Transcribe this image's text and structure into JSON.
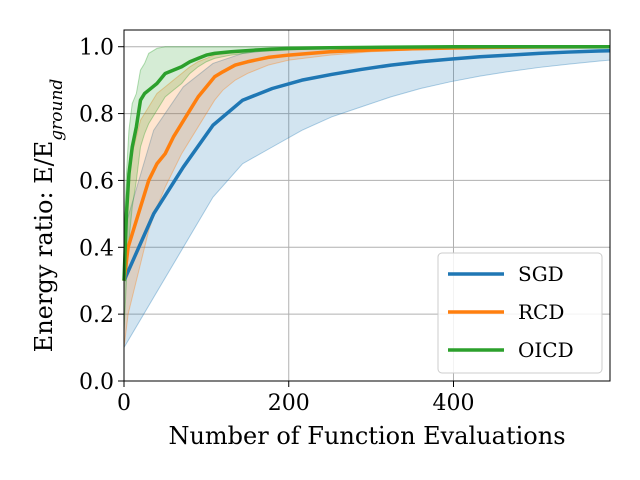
{
  "chart_data": {
    "type": "line",
    "xlabel": "Number of Function Evaluations",
    "ylabel": "Energy ratio: E/E",
    "ylabel_subscript": "ground",
    "xlim": [
      0,
      590
    ],
    "ylim": [
      0.0,
      1.05
    ],
    "xticks": [
      0,
      200,
      400
    ],
    "xtick_labels": [
      "0",
      "200",
      "400"
    ],
    "yticks": [
      0.0,
      0.2,
      0.4,
      0.6,
      0.8,
      1.0
    ],
    "ytick_labels": [
      "0.0",
      "0.2",
      "0.4",
      "0.6",
      "0.8",
      "1.0"
    ],
    "grid": true,
    "legend_position": "lower-right",
    "series": [
      {
        "name": "SGD",
        "color": "#1f77b4",
        "x": [
          0,
          36,
          72,
          108,
          144,
          180,
          216,
          252,
          288,
          324,
          360,
          396,
          432,
          468,
          504,
          540,
          576,
          590
        ],
        "y": [
          0.3,
          0.5,
          0.64,
          0.765,
          0.84,
          0.875,
          0.9,
          0.917,
          0.932,
          0.945,
          0.955,
          0.963,
          0.97,
          0.975,
          0.98,
          0.984,
          0.987,
          0.988
        ],
        "lower": [
          0.1,
          0.25,
          0.4,
          0.55,
          0.65,
          0.7,
          0.75,
          0.79,
          0.82,
          0.85,
          0.875,
          0.895,
          0.912,
          0.926,
          0.938,
          0.948,
          0.957,
          0.96
        ],
        "upper": [
          0.45,
          0.75,
          0.88,
          0.95,
          0.98,
          0.99,
          0.995,
          0.998,
          1.0,
          1.0,
          1.0,
          1.0,
          1.0,
          1.0,
          1.0,
          1.0,
          1.0,
          1.0
        ]
      },
      {
        "name": "RCD",
        "color": "#ff7f0e",
        "x": [
          0,
          5,
          10,
          20,
          30,
          40,
          50,
          60,
          70,
          80,
          90,
          100,
          110,
          120,
          135,
          150,
          175,
          200,
          250,
          300,
          350,
          400,
          450,
          500,
          590
        ],
        "y": [
          0.3,
          0.4,
          0.44,
          0.52,
          0.6,
          0.65,
          0.68,
          0.73,
          0.77,
          0.81,
          0.85,
          0.88,
          0.91,
          0.925,
          0.945,
          0.955,
          0.968,
          0.975,
          0.985,
          0.99,
          0.994,
          0.996,
          0.998,
          0.999,
          1.0
        ],
        "lower": [
          0.1,
          0.2,
          0.25,
          0.35,
          0.45,
          0.52,
          0.58,
          0.63,
          0.68,
          0.72,
          0.76,
          0.8,
          0.84,
          0.87,
          0.9,
          0.92,
          0.945,
          0.96,
          0.975,
          0.985,
          0.99,
          0.993,
          0.996,
          0.998,
          0.999
        ],
        "upper": [
          0.45,
          0.6,
          0.68,
          0.78,
          0.82,
          0.86,
          0.88,
          0.9,
          0.92,
          0.94,
          0.955,
          0.965,
          0.975,
          0.98,
          0.985,
          0.99,
          0.995,
          0.997,
          0.999,
          1.0,
          1.0,
          1.0,
          1.0,
          1.0,
          1.0
        ]
      },
      {
        "name": "OICD",
        "color": "#2ca02c",
        "x": [
          0,
          3,
          6,
          10,
          15,
          20,
          25,
          30,
          40,
          50,
          60,
          70,
          80,
          90,
          100,
          110,
          130,
          160,
          200,
          250,
          300,
          400,
          500,
          590
        ],
        "y": [
          0.3,
          0.5,
          0.62,
          0.7,
          0.76,
          0.84,
          0.86,
          0.87,
          0.89,
          0.92,
          0.93,
          0.94,
          0.955,
          0.965,
          0.975,
          0.98,
          0.985,
          0.99,
          0.995,
          0.997,
          0.998,
          1.0,
          1.0,
          1.0
        ],
        "lower": [
          0.15,
          0.3,
          0.42,
          0.52,
          0.6,
          0.7,
          0.74,
          0.77,
          0.81,
          0.85,
          0.87,
          0.89,
          0.92,
          0.94,
          0.955,
          0.965,
          0.975,
          0.985,
          0.99,
          0.995,
          0.997,
          0.999,
          1.0,
          1.0
        ],
        "upper": [
          0.45,
          0.62,
          0.75,
          0.83,
          0.86,
          0.93,
          0.95,
          0.98,
          0.995,
          1.0,
          1.0,
          1.0,
          1.0,
          1.0,
          1.0,
          1.0,
          1.0,
          1.0,
          1.0,
          1.0,
          1.0,
          1.0,
          1.0,
          1.0
        ]
      }
    ]
  }
}
